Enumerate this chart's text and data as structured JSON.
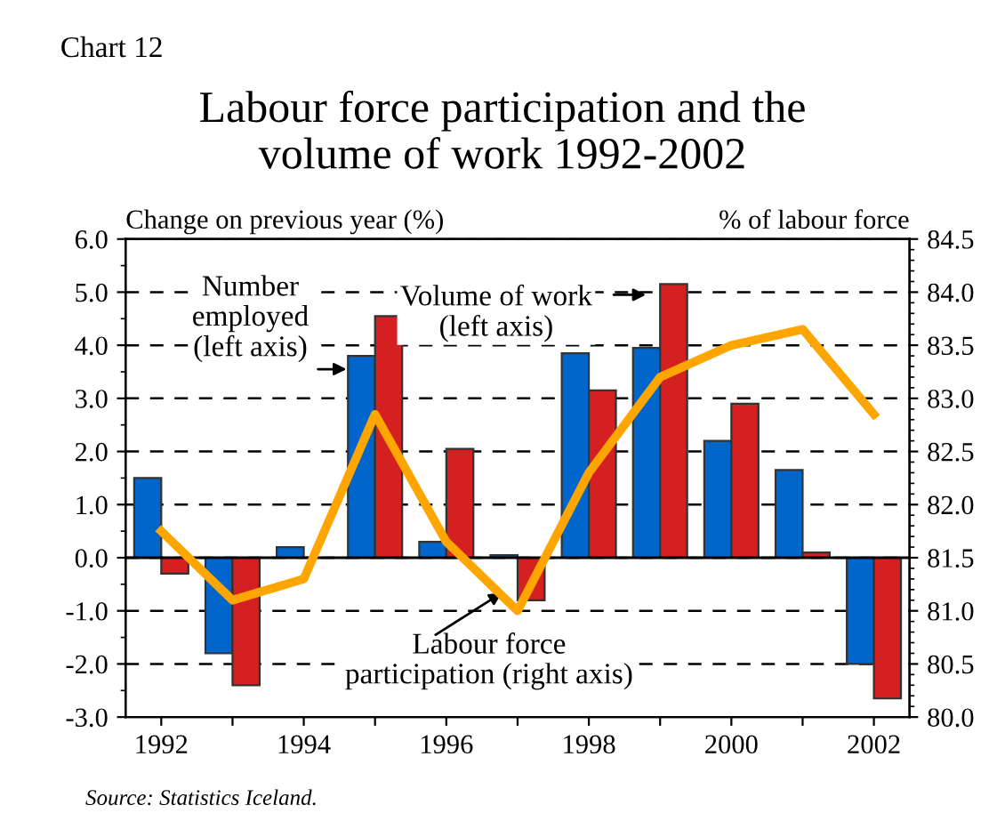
{
  "chart_data": {
    "type": "bar",
    "title": "Labour force participation and the\nvolume of work 1992-2002",
    "categories": [
      "1992",
      null,
      "1994",
      null,
      "1996",
      null,
      "1998",
      null,
      "2000",
      null,
      "2002"
    ],
    "series": [
      {
        "name": "Number\nemployed\n(left axis)",
        "color": "#0066cc",
        "values": [
          1.5,
          -1.8,
          0.2,
          3.8,
          0.3,
          0.05,
          3.85,
          3.95,
          2.2,
          1.65,
          -2.0
        ]
      },
      {
        "name": "Volume of work\n(left axis)",
        "color": "#d42020",
        "values": [
          -0.3,
          -2.4,
          null,
          4.55,
          2.05,
          -0.8,
          3.15,
          5.15,
          2.9,
          0.1,
          -2.65
        ]
      },
      {
        "name": "Labour force\nparticipation (right axis)",
        "type": "line",
        "axis": "y2",
        "color": "#ffa500",
        "values": [
          81.75,
          81.1,
          81.3,
          82.85,
          81.65,
          81.0,
          82.3,
          83.2,
          83.5,
          83.65,
          82.85
        ]
      }
    ],
    "ylabel": "Change on previous year (%)",
    "y2label": "% of labour force",
    "ylim": [
      -3,
      6
    ],
    "yticks": [
      {
        "value": -3,
        "label": "-3.0"
      },
      {
        "value": -2,
        "label": "-2.0"
      },
      {
        "value": -1,
        "label": "-1.0"
      },
      {
        "value": 0,
        "label": "0.0"
      },
      {
        "value": 1,
        "label": "1.0"
      },
      {
        "value": 2,
        "label": "2.0"
      },
      {
        "value": 3,
        "label": "3.0"
      },
      {
        "value": 4,
        "label": "4.0"
      },
      {
        "value": 5,
        "label": "5.0"
      },
      {
        "value": 6,
        "label": "6.0"
      }
    ],
    "y2lim": [
      80,
      84.5
    ],
    "y2ticks": [
      {
        "value": 80,
        "label": "80.0"
      },
      80.5,
      {
        "value": 81,
        "label": "81.0"
      },
      81.5,
      {
        "value": 82,
        "label": "82.0"
      },
      82.5,
      {
        "value": 83,
        "label": "83.0"
      },
      83.5,
      {
        "value": 84,
        "label": "84.0"
      },
      84.5
    ],
    "grid": "y",
    "legend": false,
    "annotations": [
      "Chart 12",
      "Source: Statistics Iceland."
    ]
  }
}
